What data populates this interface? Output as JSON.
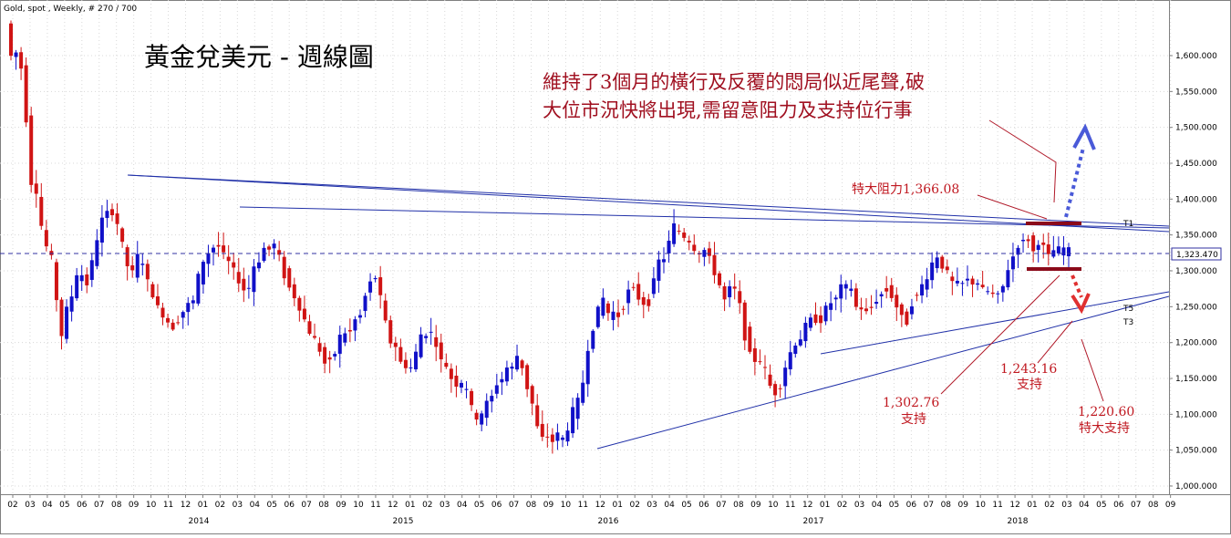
{
  "header": {
    "text": "Gold, spot , Weekly, # 270 / 700"
  },
  "chart_title": "黃金兌美元 - 週線圖",
  "annotation": {
    "line1": "維持了3個月的橫行及反覆的悶局似近尾聲,破",
    "line2": "大位市況快將出現,需留意阻力及支持位行事"
  },
  "labels": {
    "resistance": "特大阻力1,366.08",
    "support1_value": "1,302.76",
    "support1_text": "支持",
    "support2_value": "1,243.16",
    "support2_text": "支持",
    "support3_value": "1,220.60",
    "support3_text": "特大支持",
    "t1": "T1",
    "t5": "T5",
    "t3": "T3"
  },
  "colors": {
    "up_candle": "#1010c8",
    "down_candle": "#d01414",
    "trendline": "#2030a8",
    "annotation_text": "#a01020",
    "level_bar": "#8b0a1a",
    "current_price_line": "#3030a0",
    "arrow_up": "#4a5ad8",
    "arrow_down": "#e03030",
    "grid": "#d8d8d8"
  },
  "chart_data": {
    "type": "candlestick",
    "title": "黃金兌美元 - 週線圖",
    "ylim": [
      1000,
      1650
    ],
    "y_ticks": [
      "1,000.000",
      "1,050.000",
      "1,100.000",
      "1,150.000",
      "1,200.000",
      "1,250.000",
      "1,300.000",
      "1,350.000",
      "1,400.000",
      "1,450.000",
      "1,500.000",
      "1,550.000",
      "1,600.000"
    ],
    "current_price": "1,323.470",
    "month_ticks": [
      "02",
      "03",
      "04",
      "05",
      "06",
      "07",
      "08",
      "09",
      "10",
      "11",
      "12",
      "01",
      "02",
      "03",
      "04",
      "05",
      "06",
      "07",
      "08",
      "09",
      "10",
      "11",
      "12",
      "01",
      "02",
      "03",
      "04",
      "05",
      "06",
      "07",
      "08",
      "09",
      "10",
      "11",
      "12",
      "01",
      "02",
      "03",
      "04",
      "05",
      "06",
      "07",
      "08",
      "09",
      "10",
      "11",
      "12",
      "01",
      "02",
      "03",
      "04",
      "05",
      "06",
      "07",
      "08",
      "09",
      "10",
      "11",
      "12",
      "01",
      "02",
      "03",
      "04",
      "05",
      "06",
      "07",
      "08",
      "09"
    ],
    "year_labels": [
      "2014",
      "2015",
      "2016",
      "2017",
      "2018"
    ],
    "levels": {
      "resistance": 1366.08,
      "support1": 1302.76,
      "support2": 1243.16,
      "support3": 1220.6
    },
    "price_path": [
      [
        0,
        1645
      ],
      [
        3,
        1590
      ],
      [
        6,
        1610
      ],
      [
        9,
        1560
      ],
      [
        12,
        1430
      ],
      [
        15,
        1410
      ],
      [
        18,
        1350
      ],
      [
        21,
        1325
      ],
      [
        24,
        1300
      ],
      [
        27,
        1200
      ],
      [
        30,
        1240
      ],
      [
        33,
        1270
      ],
      [
        36,
        1300
      ],
      [
        39,
        1280
      ],
      [
        42,
        1300
      ],
      [
        45,
        1340
      ],
      [
        48,
        1370
      ],
      [
        51,
        1390
      ],
      [
        54,
        1380
      ],
      [
        57,
        1340
      ],
      [
        60,
        1310
      ],
      [
        63,
        1295
      ],
      [
        66,
        1320
      ],
      [
        69,
        1300
      ],
      [
        72,
        1270
      ],
      [
        75,
        1250
      ],
      [
        78,
        1240
      ],
      [
        81,
        1220
      ],
      [
        84,
        1230
      ],
      [
        87,
        1240
      ],
      [
        90,
        1250
      ],
      [
        93,
        1260
      ],
      [
        96,
        1290
      ],
      [
        99,
        1320
      ],
      [
        102,
        1330
      ],
      [
        105,
        1340
      ],
      [
        108,
        1320
      ],
      [
        111,
        1310
      ],
      [
        114,
        1295
      ],
      [
        117,
        1280
      ],
      [
        120,
        1270
      ],
      [
        123,
        1300
      ],
      [
        126,
        1320
      ],
      [
        129,
        1330
      ],
      [
        132,
        1340
      ],
      [
        135,
        1320
      ],
      [
        138,
        1300
      ],
      [
        141,
        1280
      ],
      [
        144,
        1260
      ],
      [
        147,
        1240
      ],
      [
        150,
        1220
      ],
      [
        153,
        1200
      ],
      [
        156,
        1190
      ],
      [
        159,
        1170
      ],
      [
        162,
        1180
      ],
      [
        165,
        1200
      ],
      [
        168,
        1210
      ],
      [
        171,
        1220
      ],
      [
        174,
        1230
      ],
      [
        177,
        1250
      ],
      [
        180,
        1280
      ],
      [
        183,
        1300
      ],
      [
        186,
        1260
      ],
      [
        189,
        1220
      ],
      [
        192,
        1200
      ],
      [
        195,
        1180
      ],
      [
        198,
        1170
      ],
      [
        201,
        1160
      ],
      [
        204,
        1190
      ],
      [
        207,
        1210
      ],
      [
        210,
        1220
      ],
      [
        213,
        1200
      ],
      [
        216,
        1180
      ],
      [
        219,
        1160
      ],
      [
        222,
        1150
      ],
      [
        225,
        1140
      ],
      [
        228,
        1140
      ],
      [
        231,
        1110
      ],
      [
        234,
        1090
      ],
      [
        237,
        1100
      ],
      [
        240,
        1120
      ],
      [
        243,
        1140
      ],
      [
        246,
        1150
      ],
      [
        249,
        1160
      ],
      [
        252,
        1170
      ],
      [
        255,
        1180
      ],
      [
        258,
        1150
      ],
      [
        261,
        1120
      ],
      [
        264,
        1080
      ],
      [
        267,
        1070
      ],
      [
        270,
        1065
      ],
      [
        273,
        1070
      ],
      [
        276,
        1060
      ],
      [
        279,
        1080
      ],
      [
        282,
        1100
      ],
      [
        285,
        1120
      ],
      [
        288,
        1170
      ],
      [
        291,
        1220
      ],
      [
        294,
        1240
      ],
      [
        297,
        1260
      ],
      [
        300,
        1230
      ],
      [
        303,
        1240
      ],
      [
        306,
        1250
      ],
      [
        309,
        1270
      ],
      [
        312,
        1280
      ],
      [
        315,
        1260
      ],
      [
        318,
        1250
      ],
      [
        321,
        1280
      ],
      [
        324,
        1310
      ],
      [
        327,
        1320
      ],
      [
        330,
        1350
      ],
      [
        333,
        1360
      ],
      [
        336,
        1350
      ],
      [
        339,
        1340
      ],
      [
        342,
        1330
      ],
      [
        345,
        1320
      ],
      [
        348,
        1330
      ],
      [
        351,
        1310
      ],
      [
        354,
        1280
      ],
      [
        357,
        1260
      ],
      [
        360,
        1280
      ],
      [
        363,
        1270
      ],
      [
        366,
        1230
      ],
      [
        369,
        1190
      ],
      [
        372,
        1180
      ],
      [
        375,
        1170
      ],
      [
        378,
        1150
      ],
      [
        381,
        1130
      ],
      [
        384,
        1140
      ],
      [
        387,
        1160
      ],
      [
        390,
        1190
      ],
      [
        393,
        1200
      ],
      [
        396,
        1210
      ],
      [
        399,
        1230
      ],
      [
        402,
        1240
      ],
      [
        405,
        1230
      ],
      [
        408,
        1250
      ],
      [
        411,
        1260
      ],
      [
        414,
        1270
      ],
      [
        417,
        1280
      ],
      [
        420,
        1270
      ],
      [
        423,
        1250
      ],
      [
        426,
        1240
      ],
      [
        429,
        1250
      ],
      [
        432,
        1260
      ],
      [
        435,
        1270
      ],
      [
        438,
        1280
      ],
      [
        441,
        1260
      ],
      [
        444,
        1240
      ],
      [
        447,
        1230
      ],
      [
        450,
        1260
      ],
      [
        453,
        1270
      ],
      [
        456,
        1280
      ],
      [
        459,
        1300
      ],
      [
        462,
        1320
      ],
      [
        465,
        1310
      ],
      [
        468,
        1290
      ],
      [
        471,
        1280
      ],
      [
        474,
        1280
      ],
      [
        477,
        1290
      ],
      [
        480,
        1285
      ],
      [
        483,
        1280
      ],
      [
        486,
        1270
      ],
      [
        489,
        1270
      ],
      [
        492,
        1260
      ],
      [
        495,
        1280
      ],
      [
        498,
        1300
      ],
      [
        501,
        1330
      ],
      [
        504,
        1340
      ],
      [
        507,
        1350
      ],
      [
        510,
        1330
      ],
      [
        513,
        1340
      ],
      [
        516,
        1330
      ],
      [
        519,
        1320
      ],
      [
        522,
        1330
      ],
      [
        525,
        1325
      ],
      [
        528,
        1323
      ]
    ]
  }
}
